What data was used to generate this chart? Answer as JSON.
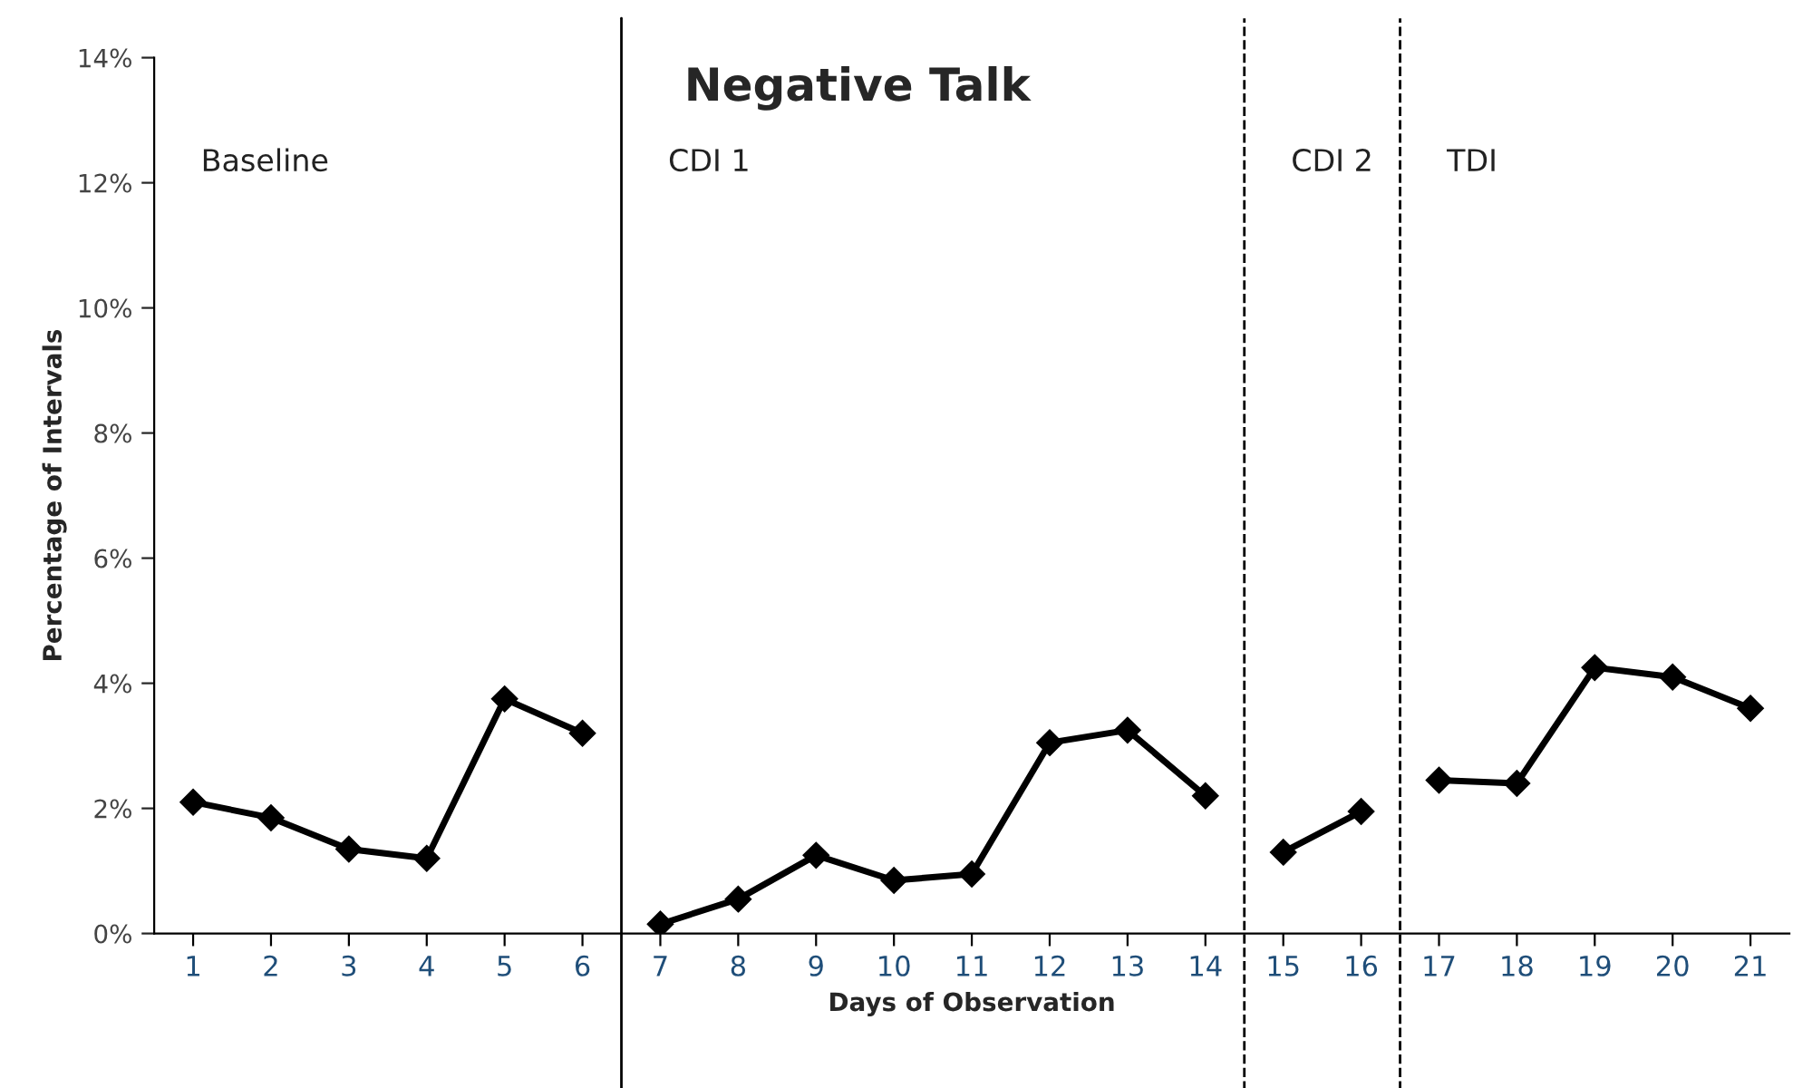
{
  "chart_data": {
    "type": "line",
    "title": "Negative Talk",
    "xlabel": "Days of Observation",
    "ylabel": "Percentage of Intervals",
    "series": [
      {
        "color": "#000000",
        "x": [
          1,
          2,
          3,
          4,
          5,
          6
        ],
        "values": [
          2.1,
          1.85,
          1.35,
          1.2,
          3.75,
          3.2
        ]
      },
      {
        "color": "#000000",
        "x": [
          7,
          8,
          9,
          10,
          11,
          12,
          13,
          14
        ],
        "values": [
          0.15,
          0.55,
          1.25,
          0.85,
          0.95,
          3.05,
          3.25,
          2.2
        ]
      },
      {
        "color": "#000000",
        "x": [
          15,
          16
        ],
        "values": [
          1.3,
          1.95
        ]
      },
      {
        "color": "#000000",
        "x": [
          17,
          18,
          19,
          20,
          21
        ],
        "values": [
          2.45,
          2.4,
          4.25,
          4.1,
          3.6
        ]
      }
    ],
    "xlim": [
      0.5,
      21.5
    ],
    "xticks": [
      1,
      2,
      3,
      4,
      5,
      6,
      7,
      8,
      9,
      10,
      11,
      12,
      13,
      14,
      15,
      16,
      17,
      18,
      19,
      20,
      21
    ],
    "ylim": [
      0,
      14
    ],
    "yticks": [
      {
        "value": 0,
        "label": "0%"
      },
      {
        "value": 2,
        "label": "2%"
      },
      {
        "value": 4,
        "label": "4%"
      },
      {
        "value": 6,
        "label": "6%"
      },
      {
        "value": 8,
        "label": "8%"
      },
      {
        "value": 10,
        "label": "10%"
      },
      {
        "value": 12,
        "label": "12%"
      },
      {
        "value": 14,
        "label": "14%"
      }
    ],
    "ref_lines": [
      {
        "axis": "x",
        "value": 6.5,
        "line_style": "solid",
        "color": "#000000"
      },
      {
        "axis": "x",
        "value": 14.5,
        "line_style": "dashed",
        "color": "#000000"
      },
      {
        "axis": "x",
        "value": 16.5,
        "line_style": "dashed",
        "color": "#000000"
      }
    ],
    "annotations": [
      "Baseline",
      "CDI 1",
      "CDI 2",
      "TDI"
    ],
    "marker": "diamond",
    "line_style": "solid",
    "grid": false,
    "legend": false
  }
}
